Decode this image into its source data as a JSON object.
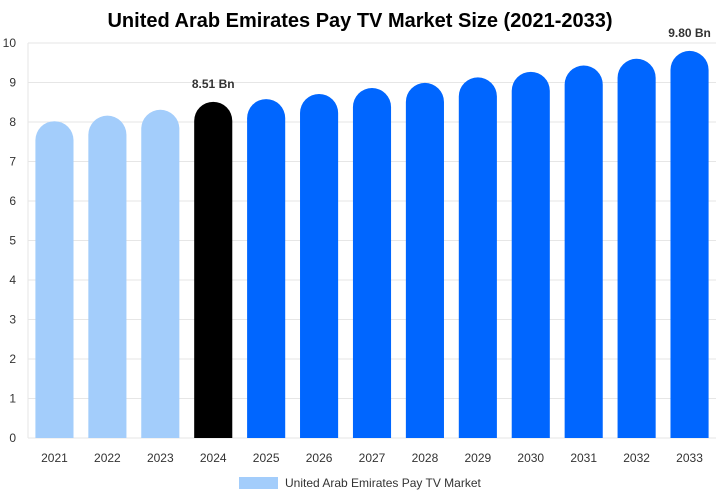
{
  "chart_data": {
    "type": "bar",
    "title": "United Arab Emirates Pay TV Market Size (2021-2033)",
    "categories": [
      "2021",
      "2022",
      "2023",
      "2024",
      "2025",
      "2026",
      "2027",
      "2028",
      "2029",
      "2030",
      "2031",
      "2032",
      "2033"
    ],
    "series": [
      {
        "name": "United Arab Emirates Pay TV Market",
        "values": [
          8.02,
          8.16,
          8.31,
          8.51,
          8.58,
          8.71,
          8.86,
          8.99,
          9.13,
          9.27,
          9.43,
          9.6,
          9.8
        ]
      }
    ],
    "data_labels": [
      {
        "category": "2024",
        "text": "8.51 Bn"
      },
      {
        "category": "2033",
        "text": "9.80 Bn"
      }
    ],
    "ylim": [
      0,
      10
    ],
    "yticks": [
      0,
      1,
      2,
      3,
      4,
      5,
      6,
      7,
      8,
      9,
      10
    ],
    "grid": true,
    "legend_position": "bottom",
    "colors": {
      "historical": "#a3cdfb",
      "base_year": "#000000",
      "forecast": "#0066ff",
      "grid": "#e6e6e6",
      "legend_swatch": "#a3cdfb"
    },
    "segments": {
      "historical": [
        "2021",
        "2022",
        "2023"
      ],
      "base_year": [
        "2024"
      ],
      "forecast": [
        "2025",
        "2026",
        "2027",
        "2028",
        "2029",
        "2030",
        "2031",
        "2032",
        "2033"
      ]
    }
  }
}
